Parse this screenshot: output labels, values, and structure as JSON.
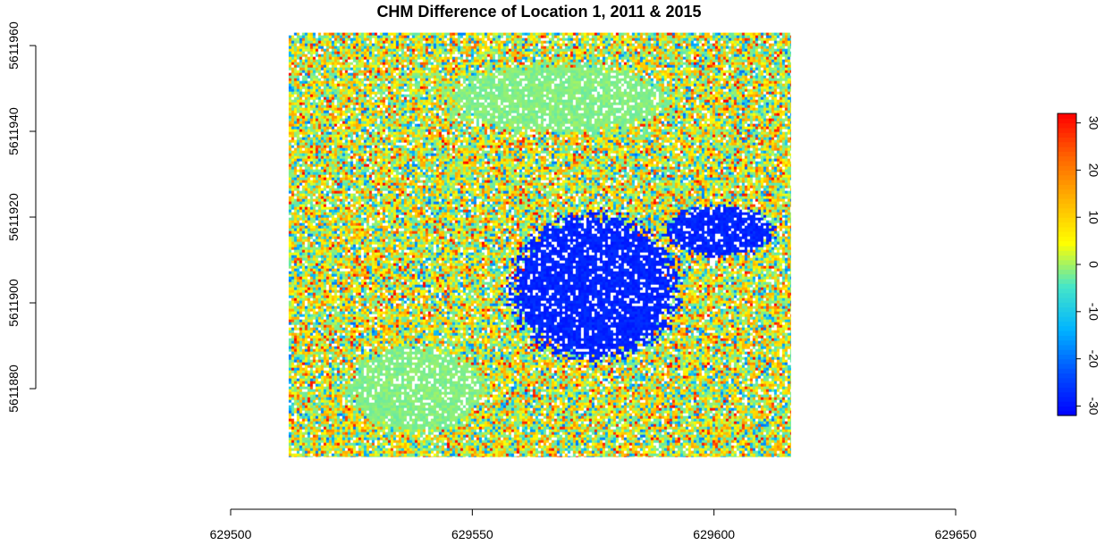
{
  "chart_data": {
    "type": "heatmap",
    "title": "CHM Difference of Location 1, 2011 & 2015",
    "xlabel": "",
    "ylabel": "",
    "xlim": [
      629500,
      629650
    ],
    "ylim": [
      5611870,
      5611960
    ],
    "raster_extent": {
      "x": [
        629512,
        629616
      ],
      "y": [
        5611864,
        5611963
      ]
    },
    "x_ticks": [
      "629500",
      "629550",
      "629600",
      "629650"
    ],
    "x_tick_values": [
      629500,
      629550,
      629600,
      629650
    ],
    "y_ticks": [
      "5611880",
      "5611900",
      "5611920",
      "5611940",
      "5611960"
    ],
    "y_tick_values": [
      5611880,
      5611900,
      5611920,
      5611940,
      5611960
    ],
    "legend": {
      "position": "right",
      "zlim": [
        -32,
        32
      ],
      "ticks": [
        "-30",
        "-20",
        "-10",
        "0",
        "10",
        "20",
        "30"
      ],
      "tick_values": [
        -30,
        -20,
        -10,
        0,
        10,
        20,
        30
      ],
      "colors": [
        "#0000ff",
        "#0050ff",
        "#00b4ff",
        "#46e6c8",
        "#ffff00",
        "#ffb400",
        "#ff6400",
        "#ff0000"
      ]
    },
    "regions": [
      {
        "name": "canopy-loss-cluster",
        "approx_value": -30,
        "center": [
          629576,
          5611908
        ],
        "extent_x": [
          629558,
          629592
        ],
        "extent_y": [
          5611887,
          5611921
        ]
      },
      {
        "name": "canopy-loss-right",
        "approx_value": -30,
        "center": [
          629601,
          5611917
        ],
        "extent_x": [
          629590,
          629612
        ],
        "extent_y": [
          5611911,
          5611923
        ]
      },
      {
        "name": "stable-lower-left",
        "approx_value": -2,
        "center": [
          629537,
          5611880
        ],
        "extent_x": [
          629524,
          629552
        ],
        "extent_y": [
          5611870,
          5611890
        ]
      },
      {
        "name": "stable-upper",
        "approx_value": -2,
        "center": [
          629565,
          5611948
        ],
        "extent_x": [
          629545,
          629590
        ],
        "extent_y": [
          5611940,
          5611956
        ]
      }
    ]
  }
}
